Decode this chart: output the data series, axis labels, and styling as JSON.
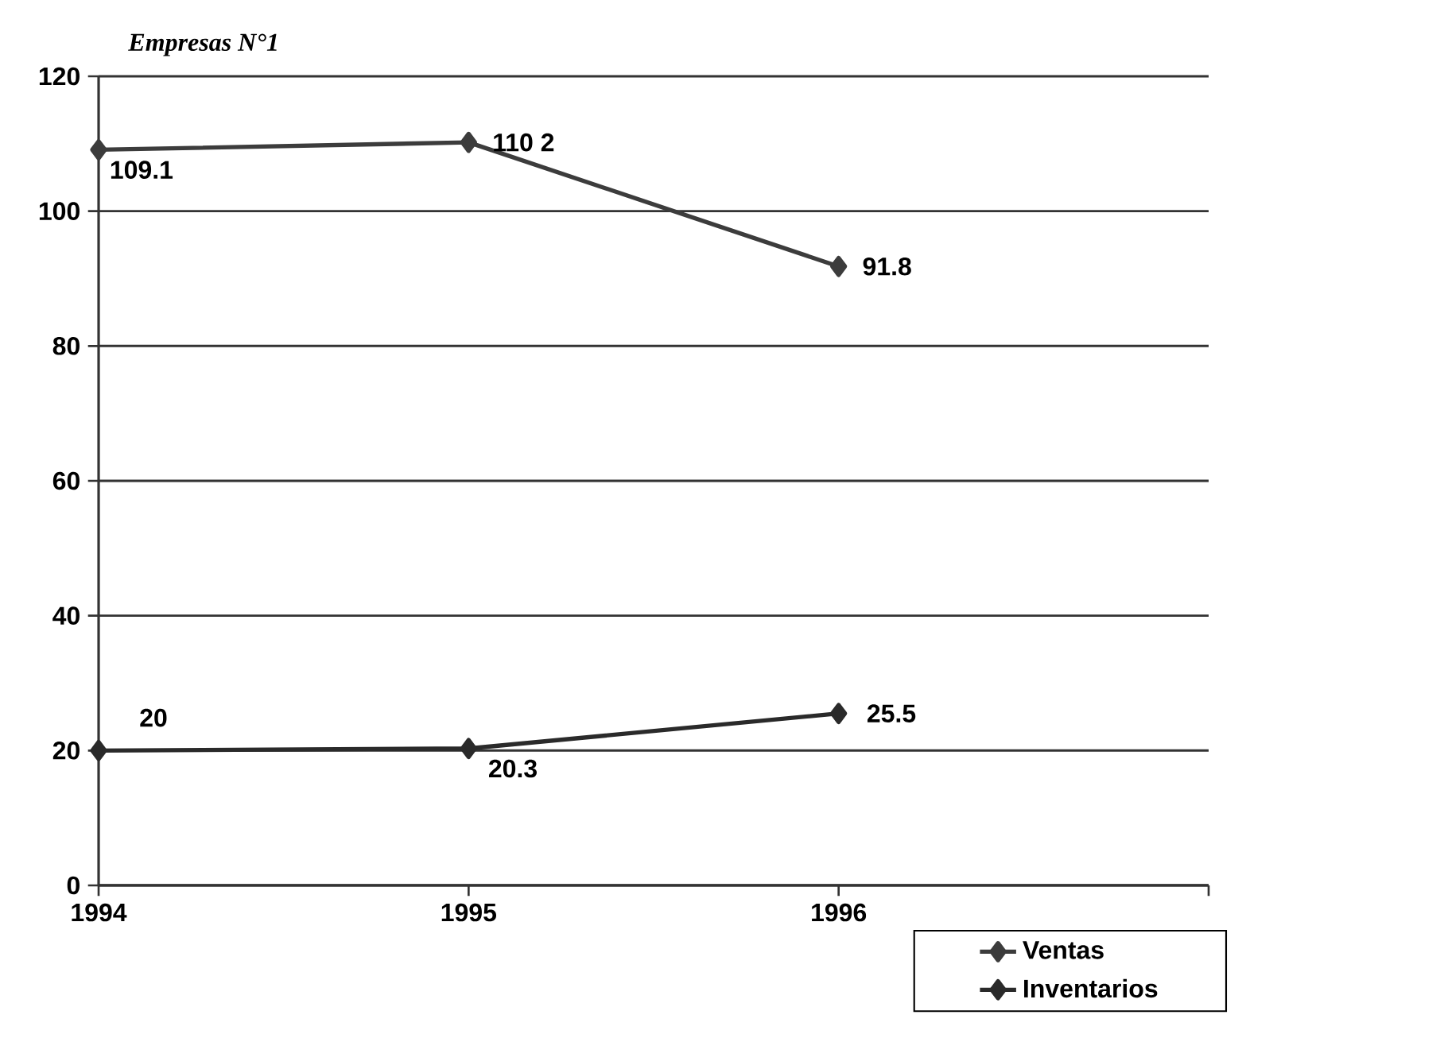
{
  "chart_data": {
    "type": "line",
    "title": "Empresas N°1",
    "x": [
      1994,
      1995,
      1996
    ],
    "series": [
      {
        "name": "Ventas",
        "color": "#3c3c3c",
        "values": [
          109.1,
          110.2,
          91.8
        ],
        "value_labels": [
          "109.1",
          "110 2",
          "91.8"
        ]
      },
      {
        "name": "Inventarios",
        "color": "#2a2a2a",
        "values": [
          20,
          20.3,
          25.5
        ],
        "value_labels": [
          "20",
          "20.3",
          "25.5"
        ]
      }
    ],
    "xlim": [
      1994,
      1997
    ],
    "xticks": [
      1994,
      1995,
      1996,
      {
        "value": 1997,
        "label": null
      }
    ],
    "ylim": [
      0,
      120
    ],
    "yticks": [
      0,
      20,
      40,
      60,
      80,
      100,
      120
    ],
    "grid": "y",
    "legend": "bottom right",
    "marker": "diamond",
    "line_style": "solid"
  }
}
